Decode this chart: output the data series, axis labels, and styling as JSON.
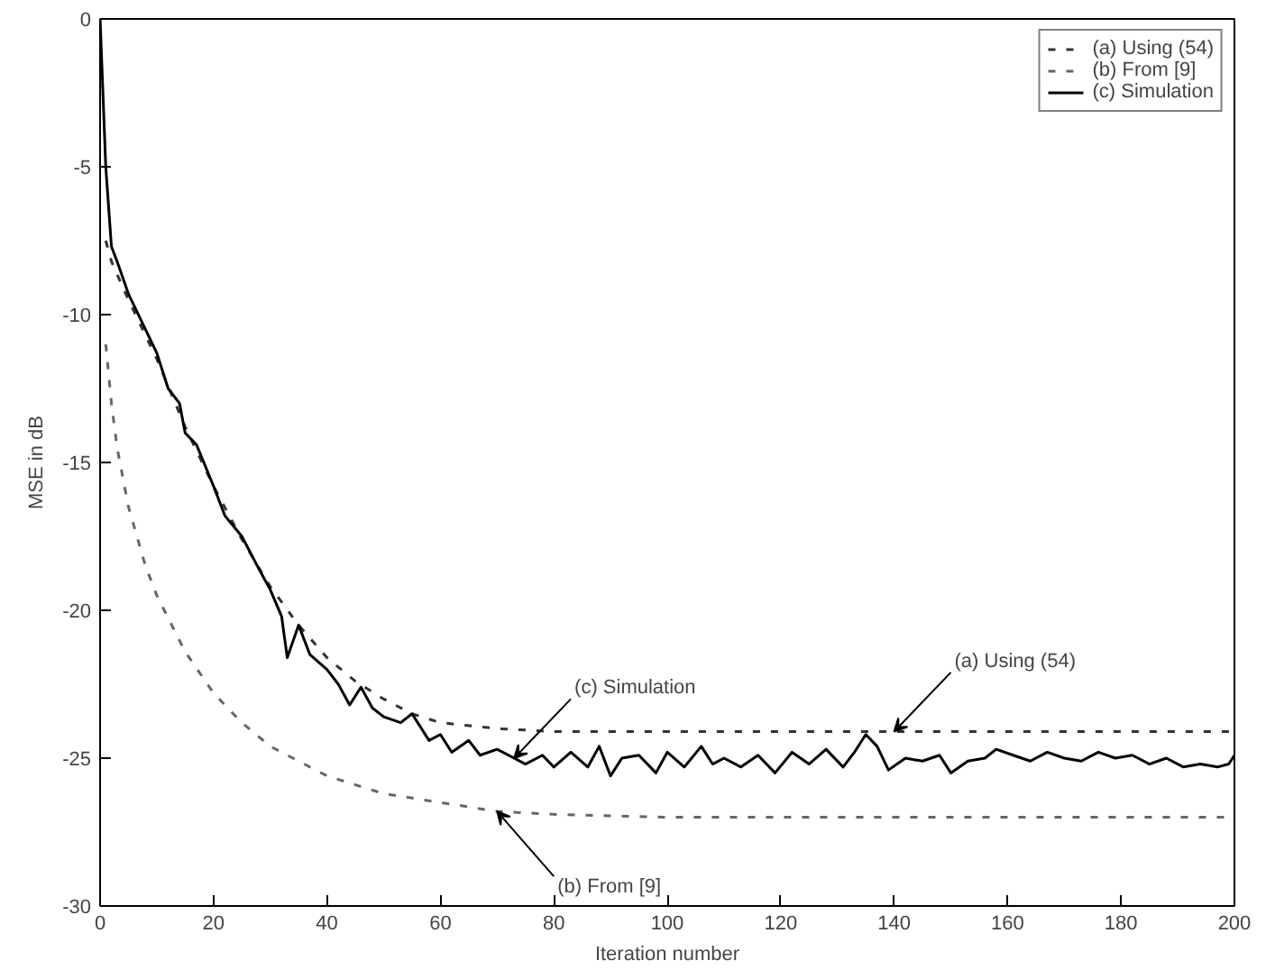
{
  "chart_data": {
    "type": "line",
    "xlabel": "Iteration number",
    "ylabel": "MSE in dB",
    "xlim": [
      0,
      200
    ],
    "ylim": [
      -30,
      0
    ],
    "xticks": [
      0,
      20,
      40,
      60,
      80,
      100,
      120,
      140,
      160,
      180,
      200
    ],
    "yticks": [
      -30,
      -25,
      -20,
      -15,
      -10,
      -5,
      0
    ],
    "grid": false,
    "legend": "top right",
    "series": [
      {
        "name": "(a) Using (54)",
        "color": "#333333",
        "line_style": "dashed",
        "x": [
          1,
          2,
          5,
          10,
          15,
          20,
          25,
          30,
          35,
          40,
          45,
          50,
          55,
          60,
          70,
          80,
          100,
          200
        ],
        "values": [
          -7.5,
          -8.2,
          -9.5,
          -11.5,
          -13.8,
          -15.8,
          -17.6,
          -19.2,
          -20.5,
          -21.6,
          -22.4,
          -23.0,
          -23.5,
          -23.8,
          -24.0,
          -24.1,
          -24.1,
          -24.1
        ]
      },
      {
        "name": "(b) From [9]",
        "color": "#666666",
        "line_style": "dashed",
        "x": [
          1,
          2,
          3,
          5,
          8,
          10,
          15,
          20,
          25,
          30,
          40,
          50,
          60,
          70,
          80,
          100,
          200
        ],
        "values": [
          -11,
          -13,
          -14.5,
          -16.5,
          -18.5,
          -19.5,
          -21.4,
          -22.8,
          -23.8,
          -24.6,
          -25.6,
          -26.2,
          -26.5,
          -26.8,
          -26.9,
          -27.0,
          -27.0
        ]
      },
      {
        "name": "(c) Simulation",
        "color": "#000000",
        "line_style": "solid",
        "x": [
          0,
          1,
          2,
          3,
          5,
          8,
          10,
          12,
          14,
          15,
          17,
          20,
          22,
          25,
          28,
          30,
          32,
          33,
          35,
          37,
          40,
          42,
          44,
          46,
          48,
          50,
          53,
          55,
          58,
          60,
          62,
          65,
          67,
          70,
          73,
          75,
          78,
          80,
          83,
          86,
          88,
          90,
          92,
          95,
          98,
          100,
          103,
          106,
          108,
          110,
          113,
          116,
          119,
          122,
          125,
          128,
          131,
          133,
          135,
          137,
          139,
          142,
          145,
          148,
          150,
          153,
          156,
          158,
          161,
          164,
          167,
          170,
          173,
          176,
          179,
          182,
          185,
          188,
          191,
          194,
          197,
          199,
          200
        ],
        "values": [
          0,
          -5,
          -7.7,
          -8.2,
          -9.3,
          -10.5,
          -11.3,
          -12.5,
          -13,
          -14,
          -14.4,
          -15.8,
          -16.8,
          -17.5,
          -18.6,
          -19.3,
          -20.2,
          -21.6,
          -20.5,
          -21.5,
          -22,
          -22.5,
          -23.2,
          -22.6,
          -23.3,
          -23.6,
          -23.8,
          -23.5,
          -24.4,
          -24.2,
          -24.8,
          -24.4,
          -24.9,
          -24.7,
          -25.0,
          -25.2,
          -24.9,
          -25.3,
          -24.8,
          -25.3,
          -24.6,
          -25.6,
          -25.0,
          -24.9,
          -25.5,
          -24.8,
          -25.3,
          -24.6,
          -25.2,
          -25.0,
          -25.3,
          -24.9,
          -25.5,
          -24.8,
          -25.2,
          -24.7,
          -25.3,
          -24.8,
          -24.2,
          -24.6,
          -25.4,
          -25.0,
          -25.1,
          -24.9,
          -25.5,
          -25.1,
          -25.0,
          -24.7,
          -24.9,
          -25.1,
          -24.8,
          -25.0,
          -25.1,
          -24.8,
          -25.0,
          -24.9,
          -25.2,
          -25.0,
          -25.3,
          -25.2,
          -25.3,
          -25.2,
          -24.9
        ]
      }
    ],
    "annotations": [
      {
        "text": "(c) Simulation",
        "x": 73,
        "y": -25.0
      },
      {
        "text": "(a) Using (54)",
        "x": 140,
        "y": -24.1
      },
      {
        "text": "(b) From [9]",
        "x": 70,
        "y": -26.8
      }
    ]
  }
}
